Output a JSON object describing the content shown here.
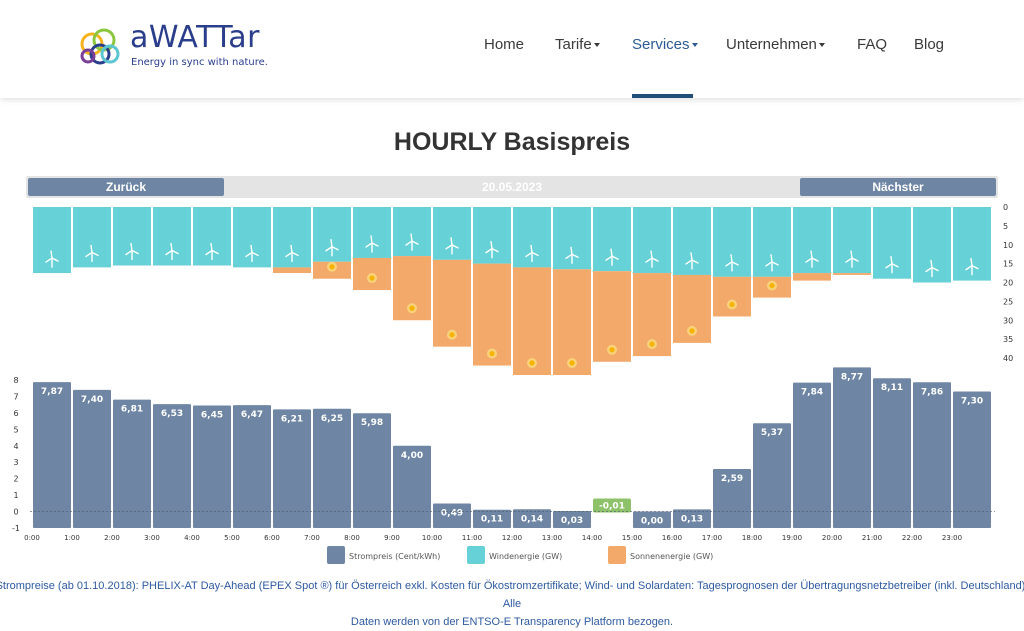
{
  "header": {
    "logo_text": "aWATTar",
    "logo_tagline": "Energy in sync with nature.",
    "nav": [
      {
        "label": "Home",
        "dropdown": false,
        "active": false
      },
      {
        "label": "Tarife",
        "dropdown": true,
        "active": false
      },
      {
        "label": "Services",
        "dropdown": true,
        "active": true
      },
      {
        "label": "Unternehmen",
        "dropdown": true,
        "active": false
      },
      {
        "label": "FAQ",
        "dropdown": false,
        "active": false
      },
      {
        "label": "Blog",
        "dropdown": false,
        "active": false
      }
    ]
  },
  "page_title": "HOURLY Basispreis",
  "datebar": {
    "prev_label": "Zurück",
    "date": "20.05.2023",
    "next_label": "Nächster"
  },
  "colors": {
    "price": "#6e86a4",
    "wind": "#66d1d6",
    "solar": "#f3a96a",
    "negative": "#8dc26a",
    "accent": "#1f4e79"
  },
  "chart_data": {
    "type": "bar",
    "categories": [
      "0:00",
      "1:00",
      "2:00",
      "3:00",
      "4:00",
      "5:00",
      "6:00",
      "7:00",
      "8:00",
      "9:00",
      "10:00",
      "11:00",
      "12:00",
      "13:00",
      "14:00",
      "15:00",
      "16:00",
      "17:00",
      "18:00",
      "19:00",
      "20:00",
      "21:00",
      "22:00",
      "23:00"
    ],
    "price": {
      "name": "Strompreis (Cent/kWh)",
      "values": [
        7.87,
        7.4,
        6.81,
        6.53,
        6.45,
        6.47,
        6.21,
        6.25,
        5.98,
        4.0,
        0.49,
        0.11,
        0.14,
        0.03,
        -0.01,
        0.0,
        0.13,
        2.59,
        5.37,
        7.84,
        8.77,
        8.11,
        7.86,
        7.3
      ],
      "labels": [
        "7,87",
        "7,40",
        "6,81",
        "6,53",
        "6,45",
        "6,47",
        "6,21",
        "6,25",
        "5,98",
        "4,00",
        "0,49",
        "0,11",
        "0,14",
        "0,03",
        "-0,01",
        "0,00",
        "0,13",
        "2,59",
        "5,37",
        "7,84",
        "8,77",
        "8,11",
        "7,86",
        "7,30"
      ],
      "ylim": [
        -1,
        8
      ],
      "yticks": [
        -1,
        0,
        1,
        2,
        3,
        4,
        5,
        6,
        7,
        8
      ]
    },
    "wind": {
      "name": "Windenergie (GW)",
      "values": [
        17.5,
        16,
        15.5,
        15.5,
        15.5,
        16,
        16,
        14.5,
        13.5,
        13,
        14,
        15,
        16,
        16.5,
        17,
        17.5,
        18,
        18.5,
        18.5,
        17.5,
        17.5,
        19,
        20,
        19.5
      ]
    },
    "solar": {
      "name": "Sonnenenergie (GW)",
      "values": [
        0,
        0,
        0,
        0,
        0,
        0,
        1.5,
        4.5,
        8.5,
        17,
        23,
        27,
        28.5,
        28,
        24,
        22,
        18,
        10.5,
        5.5,
        2,
        0.5,
        0,
        0,
        0
      ]
    },
    "energy_ylim": [
      0,
      40
    ],
    "energy_yticks": [
      0,
      5,
      10,
      15,
      20,
      25,
      30,
      35,
      40
    ],
    "legend": "bottom-center",
    "grid": false
  },
  "footnote": {
    "line1": "Strompreise (ab 01.10.2018): PHELIX-AT Day-Ahead (EPEX Spot ®) für Österreich exkl. Kosten für Ökostromzertifikate; Wind- und Solardaten: Tagesprognosen der Übertragungsnetzbetreiber (inkl. Deutschland). Alle",
    "line2": "Daten werden von der ENTSO-E Transparency Platform bezogen."
  }
}
